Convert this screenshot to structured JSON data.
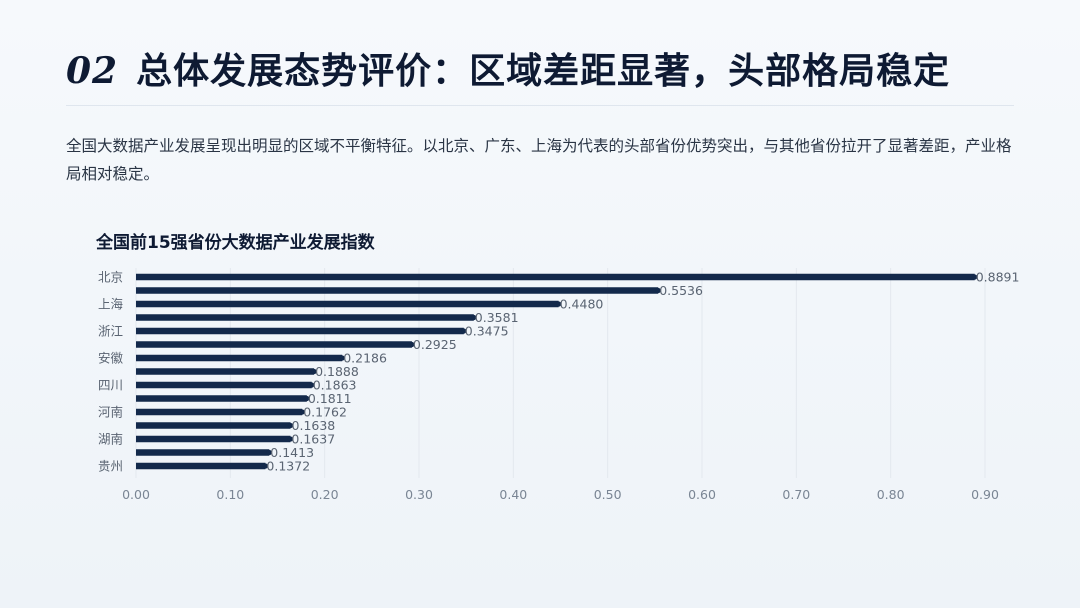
{
  "slide": {
    "number": "02",
    "title": "总体发展态势评价：区域差距显著，头部格局稳定",
    "summary": "全国大数据产业发展呈现出明显的区域不平衡特征。以北京、广东、上海为代表的头部省份优势突出，与其他省份拉开了显著差距，产业格局相对稳定。"
  },
  "colors": {
    "bar": "#13294b",
    "grid": "#e3e8ee",
    "tick": "#7a8594",
    "label": "#5a6472"
  },
  "chart_data": {
    "type": "bar",
    "orientation": "horizontal",
    "title": "全国前15强省份大数据产业发展指数",
    "categories": [
      "北京",
      "",
      "上海",
      "",
      "浙江",
      "",
      "安徽",
      "",
      "四川",
      "",
      "河南",
      "",
      "湖南",
      "",
      "贵州"
    ],
    "values": [
      0.8891,
      0.5536,
      0.448,
      0.3581,
      0.3475,
      0.2925,
      0.2186,
      0.1888,
      0.1863,
      0.1811,
      0.1762,
      0.1638,
      0.1637,
      0.1413,
      0.1372
    ],
    "value_labels": [
      "0.8891",
      "0.5536",
      "0.4480",
      "0.3581",
      "0.3475",
      "0.2925",
      "0.2186",
      "0.1888",
      "0.1863",
      "0.1811",
      "0.1762",
      "0.1638",
      "0.1637",
      "0.1413",
      "0.1372"
    ],
    "xticks": [
      "0.00",
      "0.10",
      "0.20",
      "0.30",
      "0.40",
      "0.50",
      "0.60",
      "0.70",
      "0.80",
      "0.90"
    ],
    "xlim": [
      0,
      0.9
    ],
    "grid": true
  }
}
